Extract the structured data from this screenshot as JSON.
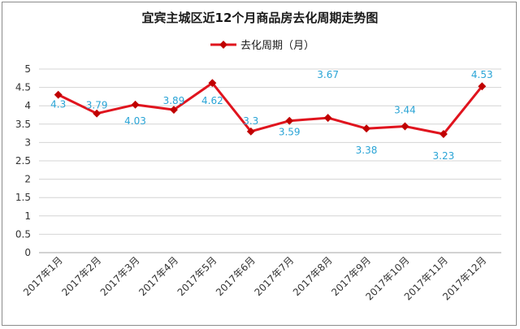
{
  "chart_data": {
    "type": "line",
    "title": "宜宾主城区近12个月商品房去化周期走势图",
    "categories": [
      "2017年1月",
      "2017年2月",
      "2017年3月",
      "2017年4月",
      "2017年5月",
      "2017年6月",
      "2017年7月",
      "2017年8月",
      "2017年9月",
      "2017年10月",
      "2017年11月",
      "2017年12月"
    ],
    "series": [
      {
        "name": "去化周期（月）",
        "values": [
          4.3,
          3.79,
          4.03,
          3.89,
          4.62,
          3.3,
          3.59,
          3.67,
          3.38,
          3.44,
          3.23,
          4.53
        ],
        "data_labels": [
          "4.3",
          "3.79",
          "4.03",
          "3.89",
          "4.62",
          "3.3",
          "3.59",
          "3.67",
          "3.38",
          "3.44",
          "3.23",
          "4.53"
        ]
      }
    ],
    "yticks": [
      "0",
      "0.5",
      "1",
      "1.5",
      "2",
      "2.5",
      "3",
      "3.5",
      "4",
      "4.5",
      "5"
    ],
    "ylim": [
      0,
      5
    ],
    "grid": true,
    "legend_position": "top-center",
    "line_color": "#e0141e",
    "label_color": "#2aa4d6",
    "grid_color": "#d4d4d4"
  }
}
